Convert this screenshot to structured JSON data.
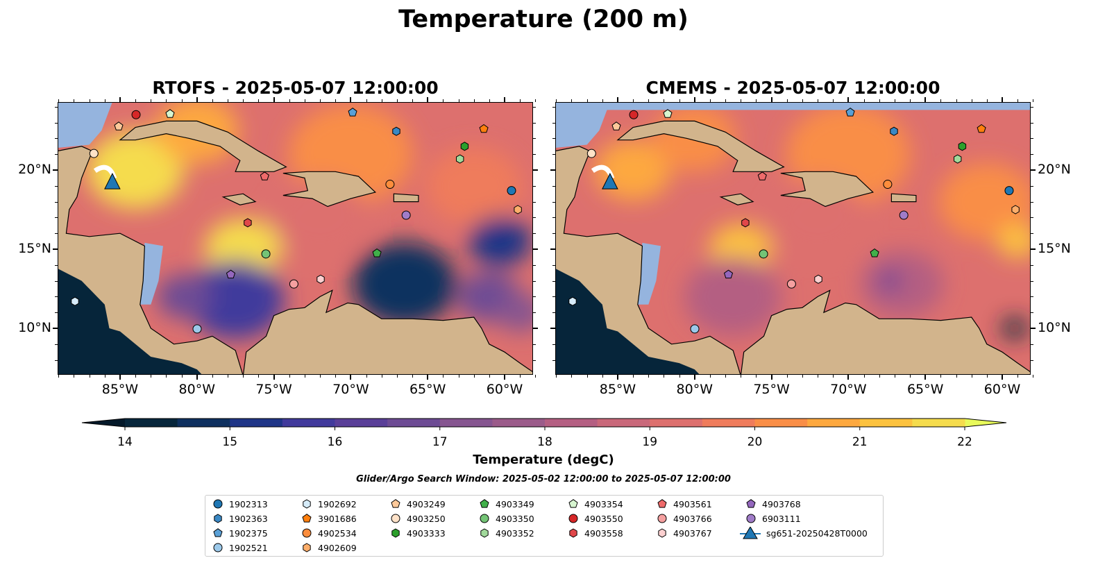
{
  "title": "Temperature (200 m)",
  "panels": [
    {
      "id": "rtofs",
      "title": "RTOFS - 2025-05-07 12:00:00"
    },
    {
      "id": "cmems",
      "title": "CMEMS - 2025-05-07 12:00:00"
    }
  ],
  "map_extent": {
    "lon": [
      -89.06,
      -58.15
    ],
    "lat": [
      7.06,
      24.3
    ]
  },
  "lon_ticks": [
    {
      "v": -85,
      "label": "85°W"
    },
    {
      "v": -80,
      "label": "80°W"
    },
    {
      "v": -75,
      "label": "75°W"
    },
    {
      "v": -70,
      "label": "70°W"
    },
    {
      "v": -65,
      "label": "65°W"
    },
    {
      "v": -60,
      "label": "60°W"
    }
  ],
  "lat_ticks": [
    {
      "v": 20,
      "label": "20°N"
    },
    {
      "v": 15,
      "label": "15°N"
    },
    {
      "v": 10,
      "label": "10°N"
    }
  ],
  "colorbar": {
    "label": "Temperature (degC)",
    "min": 14,
    "max": 22,
    "step": 0.5,
    "ticks": [
      "14",
      "15",
      "16",
      "17",
      "18",
      "19",
      "20",
      "21",
      "22"
    ],
    "colors": [
      "#07263b",
      "#0e305f",
      "#1f3587",
      "#413a9c",
      "#5a3f98",
      "#6d4b94",
      "#865590",
      "#9b5b8a",
      "#b45f82",
      "#c9687a",
      "#dd706e",
      "#ef7c5c",
      "#f98e47",
      "#fda83f",
      "#fcc23f",
      "#f5dc4d"
    ],
    "under": "#04192a",
    "over": "#e8fa5b"
  },
  "colors": {
    "land": "#d2b48c",
    "shelf": "#95b4de",
    "pacific": "#06253a"
  },
  "search_window": "Glider/Argo Search Window: 2025-05-02 12:00:00 to 2025-05-07 12:00:00",
  "platforms": [
    {
      "id": "1902313",
      "shape": "circle",
      "color": "#1f77b4",
      "lon": -59.55,
      "lat": 18.7
    },
    {
      "id": "1902363",
      "shape": "hexagon",
      "color": "#3a88c4",
      "lon": -67.04,
      "lat": 22.45
    },
    {
      "id": "1902375",
      "shape": "pentagon",
      "color": "#5aa0d6",
      "lon": -69.88,
      "lat": 23.64
    },
    {
      "id": "1902521",
      "shape": "circle",
      "color": "#9cc9ea",
      "lon": -79.99,
      "lat": 9.96
    },
    {
      "id": "1902692",
      "shape": "hexagon",
      "color": "#d6ecfa",
      "lon": -87.93,
      "lat": 11.7
    },
    {
      "id": "3901686",
      "shape": "pentagon",
      "color": "#ff7f0e",
      "lon": -61.35,
      "lat": 22.6
    },
    {
      "id": "4902534",
      "shape": "circle",
      "color": "#fd8d3c",
      "lon": -67.45,
      "lat": 19.1
    },
    {
      "id": "4902609",
      "shape": "hexagon",
      "color": "#fdae6b",
      "lon": -59.14,
      "lat": 17.5
    },
    {
      "id": "4903249",
      "shape": "pentagon",
      "color": "#fdc99a",
      "lon": -85.09,
      "lat": 22.76
    },
    {
      "id": "4903250",
      "shape": "circle",
      "color": "#fee2c8",
      "lon": -86.7,
      "lat": 21.05
    },
    {
      "id": "4903333",
      "shape": "hexagon",
      "color": "#2ca02c",
      "lon": -62.6,
      "lat": 21.5
    },
    {
      "id": "4903349",
      "shape": "pentagon",
      "color": "#41b04a",
      "lon": -68.3,
      "lat": 14.74
    },
    {
      "id": "4903350",
      "shape": "circle",
      "color": "#74c476",
      "lon": -75.52,
      "lat": 14.7
    },
    {
      "id": "4903352",
      "shape": "hexagon",
      "color": "#a1d99b",
      "lon": -62.9,
      "lat": 20.7
    },
    {
      "id": "4903354",
      "shape": "pentagon",
      "color": "#d7f5d0",
      "lon": -81.75,
      "lat": 23.55
    },
    {
      "id": "4903550",
      "shape": "circle",
      "color": "#d62728",
      "lon": -83.96,
      "lat": 23.5
    },
    {
      "id": "4903558",
      "shape": "hexagon",
      "color": "#e0474a",
      "lon": -76.7,
      "lat": 16.67
    },
    {
      "id": "4903561",
      "shape": "pentagon",
      "color": "#ef6b6b",
      "lon": -75.6,
      "lat": 19.6
    },
    {
      "id": "4903766",
      "shape": "circle",
      "color": "#f5a0a0",
      "lon": -73.7,
      "lat": 12.8
    },
    {
      "id": "4903767",
      "shape": "hexagon",
      "color": "#fcd0d0",
      "lon": -71.96,
      "lat": 13.1
    },
    {
      "id": "4903768",
      "shape": "pentagon",
      "color": "#9467bd",
      "lon": -77.8,
      "lat": 13.4
    },
    {
      "id": "6903111",
      "shape": "circle",
      "color": "#a07cc8",
      "lon": -66.4,
      "lat": 17.15
    }
  ],
  "glider": {
    "id": "sg651-20250428T0000",
    "color": "#1f77b4",
    "lon": -85.5,
    "lat": 19.25
  }
}
